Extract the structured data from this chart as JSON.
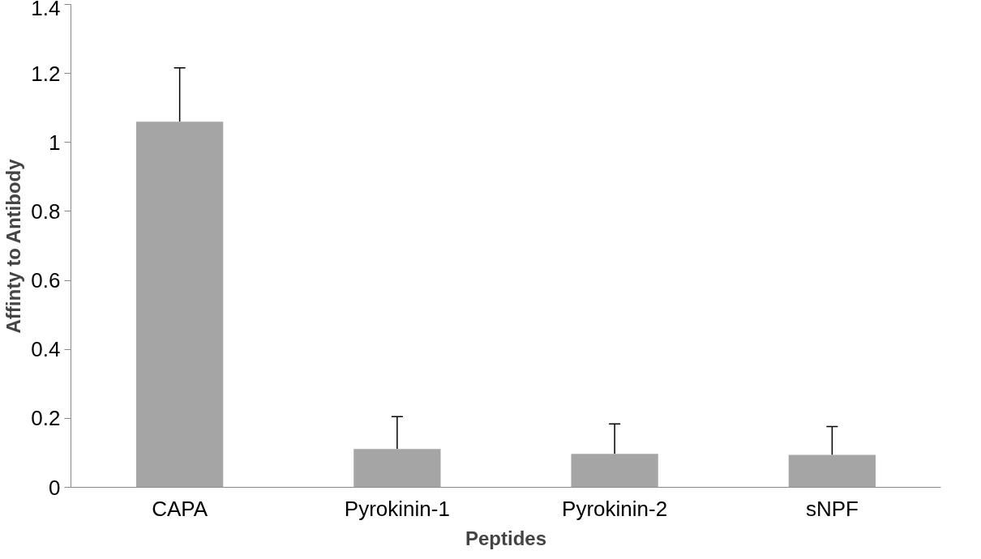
{
  "chart_data": {
    "type": "bar",
    "xlabel": "Peptides",
    "ylabel": "Affinty to Antibody",
    "categories": [
      "CAPA",
      "Pyrokinin-1",
      "Pyrokinin-2",
      "sNPF"
    ],
    "values": [
      1.06,
      0.111,
      0.097,
      0.094
    ],
    "errors": [
      [
        1.06,
        1.216
      ],
      [
        0.111,
        0.205
      ],
      [
        0.097,
        0.184
      ],
      [
        0.094,
        0.176
      ]
    ],
    "color": "#a5a5a5",
    "ylim": [
      0,
      1.4
    ],
    "yticks": [
      0,
      0.2,
      0.4,
      0.6,
      0.8,
      1,
      1.2,
      1.4
    ],
    "grid": false
  }
}
